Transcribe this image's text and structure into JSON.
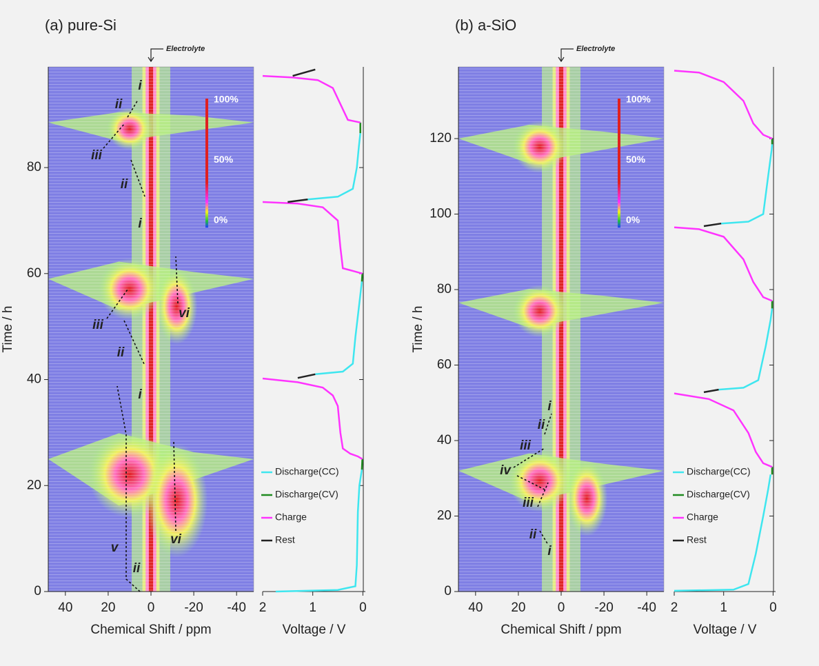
{
  "chart_data": [
    {
      "type": "contour",
      "title": "(a) pure-Si",
      "xlabel": "Chemical Shift / ppm",
      "ylabel": "Time / h",
      "xlim": [
        48,
        -48
      ],
      "xticks": [
        40,
        20,
        0,
        -20,
        -40
      ],
      "ylim": [
        0,
        99
      ],
      "yticks": [
        0,
        20,
        40,
        60,
        80
      ],
      "electrolyte_label": "Electrolyte",
      "colorbar": [
        {
          "value": 100,
          "label": "100%"
        },
        {
          "value": 50,
          "label": "50%"
        },
        {
          "value": 0,
          "label": "0%"
        }
      ],
      "annotations": [
        "i",
        "ii",
        "iii",
        "ii",
        "i",
        "vi",
        "iii",
        "ii",
        "i",
        "vi",
        "v",
        "ii"
      ]
    },
    {
      "type": "line",
      "xlabel": "Voltage / V",
      "xlim": [
        2,
        -0.05
      ],
      "xticks": [
        2,
        1,
        0
      ],
      "ylim": [
        0,
        99
      ],
      "series": [
        {
          "name": "Discharge(CC)",
          "color": "#3ee6ef",
          "x": [
            1.74,
            0.5,
            0.15,
            0.12,
            0.1,
            0.07,
            0.02,
            null,
            0.95,
            0.4,
            0.2,
            0.15,
            0.1,
            0.05,
            0.02,
            null,
            1.1,
            0.5,
            0.2,
            0.12,
            0.08,
            0.05
          ],
          "values": [
            0,
            0.3,
            1,
            5,
            15,
            20,
            23,
            null,
            41,
            41.5,
            43,
            48,
            52,
            56,
            58.5,
            null,
            74,
            74.5,
            76,
            80,
            84,
            86.5
          ]
        },
        {
          "name": "Discharge(CV)",
          "color": "#1f8a1f",
          "x": [
            0.02,
            0.01,
            null,
            0.02,
            0.01,
            null,
            0.05,
            0.05
          ],
          "values": [
            23,
            25,
            null,
            58.5,
            60,
            null,
            86.5,
            88.5
          ]
        },
        {
          "name": "Charge",
          "color": "#ff33ff",
          "x": [
            0.01,
            0.1,
            0.25,
            0.4,
            0.45,
            0.5,
            0.6,
            0.8,
            1.3,
            2,
            null,
            0.01,
            0.2,
            0.4,
            0.45,
            0.5,
            0.8,
            1.3,
            2,
            null,
            0.05,
            0.3,
            0.45,
            0.6,
            0.9,
            1.4,
            2
          ],
          "values": [
            25,
            25.5,
            26,
            27,
            30,
            35,
            37,
            38.5,
            39.5,
            40.2,
            null,
            60,
            60.5,
            61,
            65,
            70,
            72.5,
            73.2,
            73.5,
            null,
            88.5,
            89,
            92,
            95,
            96.5,
            97,
            97.3
          ]
        },
        {
          "name": "Rest",
          "color": "#222222",
          "x": [
            1.3,
            0.95,
            null,
            1.5,
            1.1,
            null,
            1.4,
            0.95
          ],
          "values": [
            40.3,
            41,
            null,
            73.5,
            74,
            null,
            97.3,
            98.5
          ]
        }
      ]
    },
    {
      "type": "contour",
      "title": "(b) a-SiO",
      "xlabel": "Chemical Shift / ppm",
      "ylabel": "Time / h",
      "xlim": [
        48,
        -48
      ],
      "xticks": [
        40,
        20,
        0,
        -20,
        -40
      ],
      "ylim": [
        0,
        139
      ],
      "yticks": [
        0,
        20,
        40,
        60,
        80,
        100,
        120
      ],
      "electrolyte_label": "Electrolyte",
      "colorbar": [
        {
          "value": 100,
          "label": "100%"
        },
        {
          "value": 50,
          "label": "50%"
        },
        {
          "value": 0,
          "label": "0%"
        }
      ],
      "annotations": [
        "i",
        "ii",
        "iii",
        "iv",
        "iii",
        "ii",
        "i"
      ]
    },
    {
      "type": "line",
      "xlabel": "Voltage / V",
      "xlim": [
        2,
        -0.05
      ],
      "xticks": [
        2,
        1,
        0
      ],
      "ylim": [
        0,
        139
      ],
      "series": [
        {
          "name": "Discharge(CC)",
          "color": "#3ee6ef",
          "x": [
            2,
            0.8,
            0.5,
            0.35,
            0.2,
            0.1,
            0.05,
            null,
            1.1,
            0.6,
            0.3,
            0.15,
            0.05,
            0.02,
            null,
            1.05,
            0.5,
            0.2,
            0.1,
            0.03,
            0.02
          ],
          "values": [
            0.2,
            0.5,
            2,
            10,
            20,
            27,
            31,
            null,
            53.5,
            54,
            56,
            65,
            72,
            75,
            null,
            97.5,
            98,
            100,
            110,
            117,
            118.5
          ]
        },
        {
          "name": "Discharge(CV)",
          "color": "#1f8a1f",
          "x": [
            0.02,
            0.02,
            null,
            0.02,
            0.02,
            null,
            0.02,
            0.02
          ],
          "values": [
            31,
            33,
            null,
            75,
            77,
            null,
            118.5,
            120
          ]
        },
        {
          "name": "Charge",
          "color": "#ff33ff",
          "x": [
            0.02,
            0.2,
            0.35,
            0.5,
            0.8,
            1.3,
            2,
            null,
            0.02,
            0.2,
            0.4,
            0.6,
            1,
            1.5,
            2,
            null,
            0.02,
            0.2,
            0.4,
            0.6,
            1,
            1.5,
            2
          ],
          "values": [
            33,
            34,
            37,
            42,
            48,
            51,
            52.5,
            null,
            77,
            78,
            82,
            88,
            94,
            96,
            96.5,
            null,
            120,
            121,
            124,
            130,
            135,
            137.5,
            138
          ]
        },
        {
          "name": "Rest",
          "color": "#222222",
          "x": [
            1.4,
            1.1,
            null,
            1.4,
            1.05
          ],
          "values": [
            52.8,
            53.5,
            null,
            96.8,
            97.5
          ]
        }
      ]
    }
  ]
}
